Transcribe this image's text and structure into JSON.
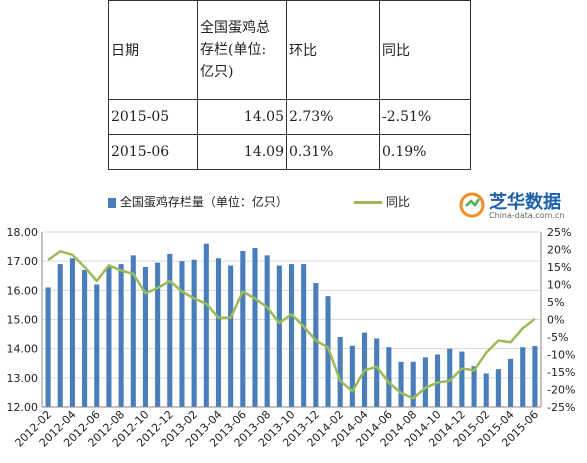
{
  "table": {
    "headers": [
      "日期",
      "全国蛋鸡总存栏(单位:亿只)",
      "环比",
      "同比"
    ],
    "header_lines": [
      "全国蛋鸡总",
      "存栏(单位:",
      "亿只)"
    ],
    "rows": [
      [
        "2015-05",
        "14.05",
        "2.73%",
        "-2.51%"
      ],
      [
        "2015-06",
        "14.09",
        "0.31%",
        "0.19%"
      ]
    ]
  },
  "brand": {
    "name": "芝华数据",
    "url": "China-data.com.cn"
  },
  "chart_data": {
    "type": "bar",
    "legend": {
      "bar_label": "全国蛋鸡存栏量（单位：亿只）",
      "line_label": "同比"
    },
    "colors": {
      "bar": "#4a7ebb",
      "line": "#9bbb59"
    },
    "x": [
      "2012-02",
      "2012-03",
      "2012-04",
      "2012-05",
      "2012-06",
      "2012-07",
      "2012-08",
      "2012-09",
      "2012-10",
      "2012-11",
      "2012-12",
      "2013-01",
      "2013-02",
      "2013-03",
      "2013-04",
      "2013-05",
      "2013-06",
      "2013-07",
      "2013-08",
      "2013-09",
      "2013-10",
      "2013-11",
      "2013-12",
      "2014-01",
      "2014-02",
      "2014-03",
      "2014-04",
      "2014-05",
      "2014-06",
      "2014-07",
      "2014-08",
      "2014-09",
      "2014-10",
      "2014-11",
      "2014-12",
      "2015-01",
      "2015-02",
      "2015-03",
      "2015-04",
      "2015-05",
      "2015-06"
    ],
    "tick_labels": [
      "2012-02",
      "2012-04",
      "2012-06",
      "2012-08",
      "2012-10",
      "2012-12",
      "2013-02",
      "2013-04",
      "2013-06",
      "2013-08",
      "2013-10",
      "2013-12",
      "2014-02",
      "2014-04",
      "2014-06",
      "2014-08",
      "2014-10",
      "2014-12",
      "2015-02",
      "2015-04",
      "2015-06"
    ],
    "series": [
      {
        "name": "全国蛋鸡存栏量（单位：亿只）",
        "type": "bar",
        "axis": "left",
        "values": [
          16.1,
          16.9,
          17.1,
          16.7,
          16.2,
          16.8,
          16.9,
          17.2,
          16.8,
          16.95,
          17.25,
          17.0,
          17.05,
          17.6,
          17.1,
          16.85,
          17.35,
          17.45,
          17.2,
          16.85,
          16.9,
          16.9,
          16.25,
          15.8,
          14.4,
          14.1,
          14.55,
          14.35,
          14.05,
          13.55,
          13.55,
          13.7,
          13.8,
          14.0,
          13.9,
          13.4,
          13.15,
          13.3,
          13.65,
          14.05,
          14.09
        ]
      },
      {
        "name": "同比",
        "type": "line",
        "axis": "right",
        "values": [
          17,
          19.5,
          18.5,
          15,
          11,
          15.5,
          14,
          13,
          7.5,
          9,
          11,
          8,
          6,
          4.5,
          0.5,
          0.5,
          8,
          6,
          3.5,
          -1,
          1.5,
          -2,
          -6,
          -8,
          -17.5,
          -20.5,
          -14.5,
          -13.5,
          -18,
          -21,
          -22.5,
          -19.5,
          -18,
          -17.5,
          -14,
          -14.5,
          -9.5,
          -6,
          -6.5,
          -2.5,
          0.19
        ]
      }
    ],
    "y_left": {
      "range": [
        12,
        18
      ],
      "ticks": [
        "12.00",
        "13.00",
        "14.00",
        "15.00",
        "16.00",
        "17.00",
        "18.00"
      ]
    },
    "y_right": {
      "range": [
        -25,
        25
      ],
      "ticks": [
        "-25%",
        "-20%",
        "-15%",
        "-10%",
        "-5%",
        "0%",
        "5%",
        "10%",
        "15%",
        "20%",
        "25%"
      ]
    },
    "grid": true,
    "legend_position": "top"
  }
}
